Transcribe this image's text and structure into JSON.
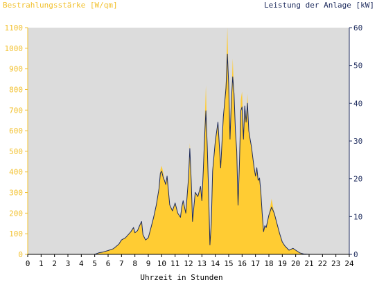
{
  "chart_data": {
    "type": "area",
    "left_axis_title": "Bestrahlungsstärke [W/qm]",
    "right_axis_title": "Leistung der Anlage [kW]",
    "xlabel": "Uhrzeit in Stunden",
    "xlim": [
      0,
      24
    ],
    "xticks": [
      0,
      1,
      2,
      3,
      4,
      5,
      6,
      7,
      8,
      9,
      10,
      11,
      12,
      13,
      14,
      15,
      16,
      17,
      18,
      19,
      20,
      21,
      22,
      23,
      24
    ],
    "ylim_left": [
      0,
      1100
    ],
    "yticks_left": [
      0,
      100,
      200,
      300,
      400,
      500,
      600,
      700,
      800,
      900,
      1000,
      1100
    ],
    "ylim_right": [
      0,
      60
    ],
    "yticks_right": [
      0,
      10,
      20,
      30,
      40,
      50,
      60
    ],
    "grid": false,
    "background": "#dcdcdc",
    "colors": {
      "irradiance_fill": "#ffcc33",
      "power_line": "#1c2a5c",
      "left_axis_text": "#f2c12e",
      "right_axis_text": "#1c2a5c",
      "x_axis_text": "#000000"
    },
    "series": [
      {
        "axis": "left",
        "style": "filled-area",
        "x": [
          0,
          5.0,
          5.3,
          5.6,
          6.0,
          6.4,
          6.8,
          7.0,
          7.3,
          7.5,
          7.7,
          7.9,
          8.0,
          8.2,
          8.35,
          8.5,
          8.6,
          8.8,
          9.0,
          9.2,
          9.4,
          9.6,
          9.8,
          9.9,
          10.0,
          10.1,
          10.2,
          10.3,
          10.4,
          10.5,
          10.6,
          10.8,
          11.0,
          11.2,
          11.4,
          11.5,
          11.6,
          11.8,
          12.0,
          12.1,
          12.2,
          12.3,
          12.5,
          12.7,
          12.9,
          13.0,
          13.1,
          13.2,
          13.3,
          13.4,
          13.5,
          13.6,
          13.7,
          13.8,
          14.0,
          14.2,
          14.4,
          14.6,
          14.8,
          14.9,
          15.0,
          15.1,
          15.2,
          15.3,
          15.4,
          15.5,
          15.6,
          15.7,
          15.8,
          15.9,
          16.0,
          16.1,
          16.2,
          16.3,
          16.4,
          16.5,
          16.6,
          16.7,
          16.8,
          16.9,
          17.0,
          17.1,
          17.2,
          17.3,
          17.4,
          17.5,
          17.6,
          17.7,
          17.8,
          18.0,
          18.2,
          18.4,
          18.6,
          18.8,
          19.0,
          19.2,
          19.5,
          19.8,
          20.0,
          20.3,
          20.6,
          21.0,
          24
        ],
        "y": [
          0,
          0,
          8,
          12,
          18,
          28,
          50,
          70,
          80,
          95,
          110,
          130,
          105,
          115,
          140,
          160,
          95,
          70,
          80,
          130,
          180,
          240,
          320,
          410,
          430,
          400,
          360,
          340,
          380,
          310,
          240,
          210,
          250,
          200,
          180,
          230,
          260,
          200,
          370,
          540,
          360,
          160,
          300,
          280,
          330,
          260,
          430,
          620,
          820,
          520,
          300,
          50,
          150,
          420,
          560,
          640,
          420,
          670,
          850,
          1100,
          830,
          560,
          760,
          950,
          780,
          600,
          500,
          280,
          440,
          750,
          790,
          560,
          720,
          640,
          780,
          600,
          560,
          520,
          470,
          420,
          380,
          420,
          360,
          370,
          300,
          200,
          110,
          140,
          130,
          190,
          270,
          200,
          150,
          100,
          60,
          40,
          20,
          30,
          20,
          8,
          2,
          0,
          0
        ]
      },
      {
        "axis": "right",
        "style": "line",
        "x": [
          0,
          5.0,
          5.3,
          5.6,
          6.0,
          6.4,
          6.8,
          7.0,
          7.3,
          7.5,
          7.7,
          7.9,
          8.0,
          8.2,
          8.35,
          8.5,
          8.6,
          8.8,
          9.0,
          9.2,
          9.4,
          9.6,
          9.8,
          9.9,
          10.0,
          10.1,
          10.2,
          10.3,
          10.4,
          10.5,
          10.6,
          10.8,
          11.0,
          11.2,
          11.4,
          11.5,
          11.6,
          11.8,
          12.0,
          12.1,
          12.2,
          12.3,
          12.5,
          12.7,
          12.9,
          13.0,
          13.1,
          13.2,
          13.3,
          13.4,
          13.5,
          13.6,
          13.7,
          13.8,
          14.0,
          14.2,
          14.4,
          14.6,
          14.8,
          14.9,
          15.0,
          15.1,
          15.2,
          15.3,
          15.4,
          15.5,
          15.6,
          15.7,
          15.8,
          15.9,
          16.0,
          16.1,
          16.2,
          16.3,
          16.4,
          16.5,
          16.6,
          16.7,
          16.8,
          16.9,
          17.0,
          17.1,
          17.2,
          17.3,
          17.4,
          17.5,
          17.6,
          17.7,
          17.8,
          18.0,
          18.2,
          18.4,
          18.6,
          18.8,
          19.0,
          19.2,
          19.5,
          19.8,
          20.0,
          20.3,
          20.6,
          21.0,
          24
        ],
        "y": [
          0,
          0,
          0.4,
          0.6,
          1.0,
          1.5,
          2.7,
          3.8,
          4.4,
          5.2,
          6.0,
          7.1,
          5.7,
          6.3,
          7.6,
          8.7,
          5.2,
          3.8,
          4.4,
          7.1,
          9.8,
          13.1,
          17.5,
          21.5,
          22.0,
          20.5,
          19.6,
          18.5,
          20.7,
          16.9,
          13.1,
          11.5,
          13.6,
          10.9,
          9.8,
          12.5,
          14.2,
          10.9,
          20.2,
          28.0,
          19.6,
          8.7,
          16.4,
          15.3,
          18.0,
          14.2,
          22.0,
          31.0,
          38.0,
          28.4,
          16.4,
          2.5,
          8.2,
          22.0,
          30.0,
          35.0,
          22.9,
          36.5,
          44.0,
          53.0,
          45.0,
          30.5,
          41.0,
          47.0,
          42.5,
          32.7,
          27.3,
          13.0,
          24.0,
          38.0,
          39.0,
          30.5,
          39.3,
          35.0,
          40.0,
          32.7,
          30.5,
          28.4,
          25.6,
          22.9,
          20.7,
          22.9,
          19.6,
          20.2,
          16.4,
          10.9,
          6.0,
          7.6,
          7.1,
          10.4,
          12.5,
          10.9,
          8.2,
          5.5,
          3.3,
          2.2,
          1.1,
          1.6,
          1.1,
          0.4,
          0.1,
          0,
          0
        ]
      }
    ]
  }
}
